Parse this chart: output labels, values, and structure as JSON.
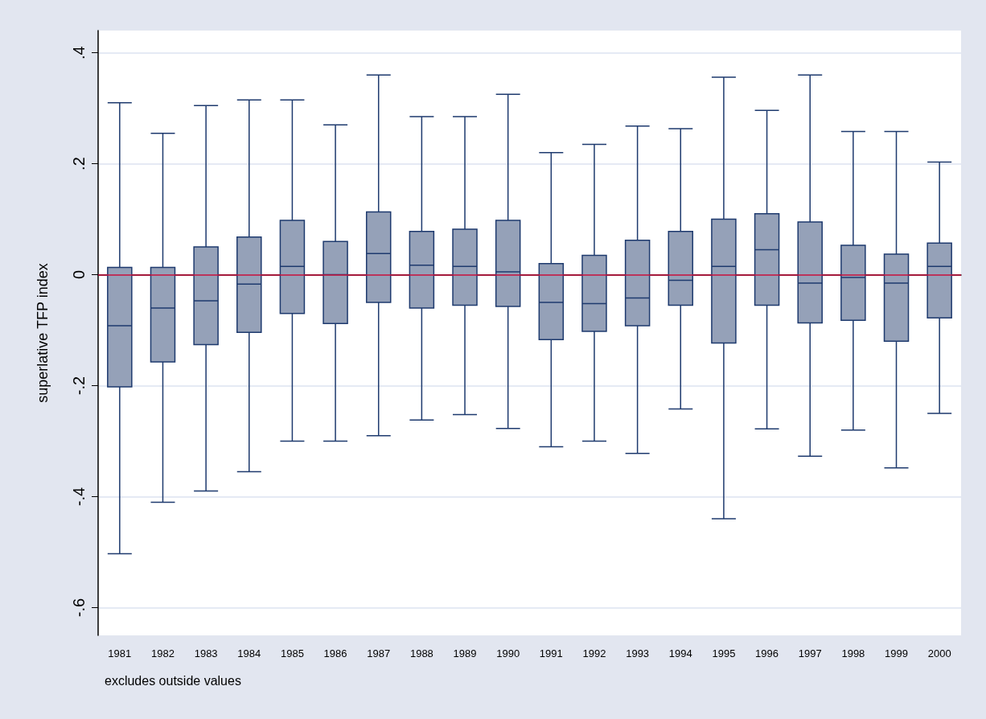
{
  "chart_data": {
    "type": "box",
    "ylabel": "superlative TFP index",
    "annotations": [
      "excludes outside values"
    ],
    "categories": [
      "1981",
      "1982",
      "1983",
      "1984",
      "1985",
      "1986",
      "1987",
      "1988",
      "1989",
      "1990",
      "1991",
      "1992",
      "1993",
      "1994",
      "1995",
      "1996",
      "1997",
      "1998",
      "1999",
      "2000"
    ],
    "series": [
      {
        "color": "#95a1b8",
        "boxes": [
          {
            "low": -0.503,
            "q1": -0.202,
            "median": -0.092,
            "q3": 0.013,
            "high": 0.31
          },
          {
            "low": -0.41,
            "q1": -0.157,
            "median": -0.06,
            "q3": 0.013,
            "high": 0.255
          },
          {
            "low": -0.39,
            "q1": -0.126,
            "median": -0.047,
            "q3": 0.05,
            "high": 0.305
          },
          {
            "low": -0.355,
            "q1": -0.104,
            "median": -0.017,
            "q3": 0.068,
            "high": 0.315
          },
          {
            "low": -0.3,
            "q1": -0.07,
            "median": 0.015,
            "q3": 0.098,
            "high": 0.315
          },
          {
            "low": -0.3,
            "q1": -0.088,
            "median": 0,
            "q3": 0.06,
            "high": 0.27
          },
          {
            "low": -0.29,
            "q1": -0.05,
            "median": 0.038,
            "q3": 0.113,
            "high": 0.36
          },
          {
            "low": -0.262,
            "q1": -0.06,
            "median": 0.017,
            "q3": 0.078,
            "high": 0.285
          },
          {
            "low": -0.252,
            "q1": -0.055,
            "median": 0.015,
            "q3": 0.082,
            "high": 0.285
          },
          {
            "low": -0.277,
            "q1": -0.057,
            "median": 0.005,
            "q3": 0.098,
            "high": 0.325
          },
          {
            "low": -0.31,
            "q1": -0.117,
            "median": -0.05,
            "q3": 0.02,
            "high": 0.22
          },
          {
            "low": -0.3,
            "q1": -0.102,
            "median": -0.052,
            "q3": 0.035,
            "high": 0.235
          },
          {
            "low": -0.322,
            "q1": -0.092,
            "median": -0.042,
            "q3": 0.062,
            "high": 0.268
          },
          {
            "low": -0.242,
            "q1": -0.055,
            "median": -0.01,
            "q3": 0.078,
            "high": 0.263
          },
          {
            "low": -0.44,
            "q1": -0.123,
            "median": 0.015,
            "q3": 0.1,
            "high": 0.356
          },
          {
            "low": -0.278,
            "q1": -0.055,
            "median": 0.045,
            "q3": 0.11,
            "high": 0.296
          },
          {
            "low": -0.327,
            "q1": -0.087,
            "median": -0.015,
            "q3": 0.095,
            "high": 0.36
          },
          {
            "low": -0.28,
            "q1": -0.082,
            "median": -0.005,
            "q3": 0.053,
            "high": 0.258
          },
          {
            "low": -0.348,
            "q1": -0.12,
            "median": -0.015,
            "q3": 0.037,
            "high": 0.258
          },
          {
            "low": -0.25,
            "q1": -0.078,
            "median": 0.015,
            "q3": 0.057,
            "high": 0.203
          }
        ]
      }
    ],
    "ylim": [
      -0.65,
      0.44
    ],
    "yticks": [
      {
        "value": -0.6,
        "label": "-.6"
      },
      {
        "value": -0.4,
        "label": "-.4"
      },
      {
        "value": -0.2,
        "label": "-.2"
      },
      0,
      {
        "value": 0.2,
        "label": ".2"
      },
      {
        "value": 0.4,
        "label": ".4"
      }
    ],
    "grid": "y",
    "ref_lines": [
      {
        "axis": "y",
        "value": 0,
        "color": "#c8103c"
      }
    ]
  }
}
